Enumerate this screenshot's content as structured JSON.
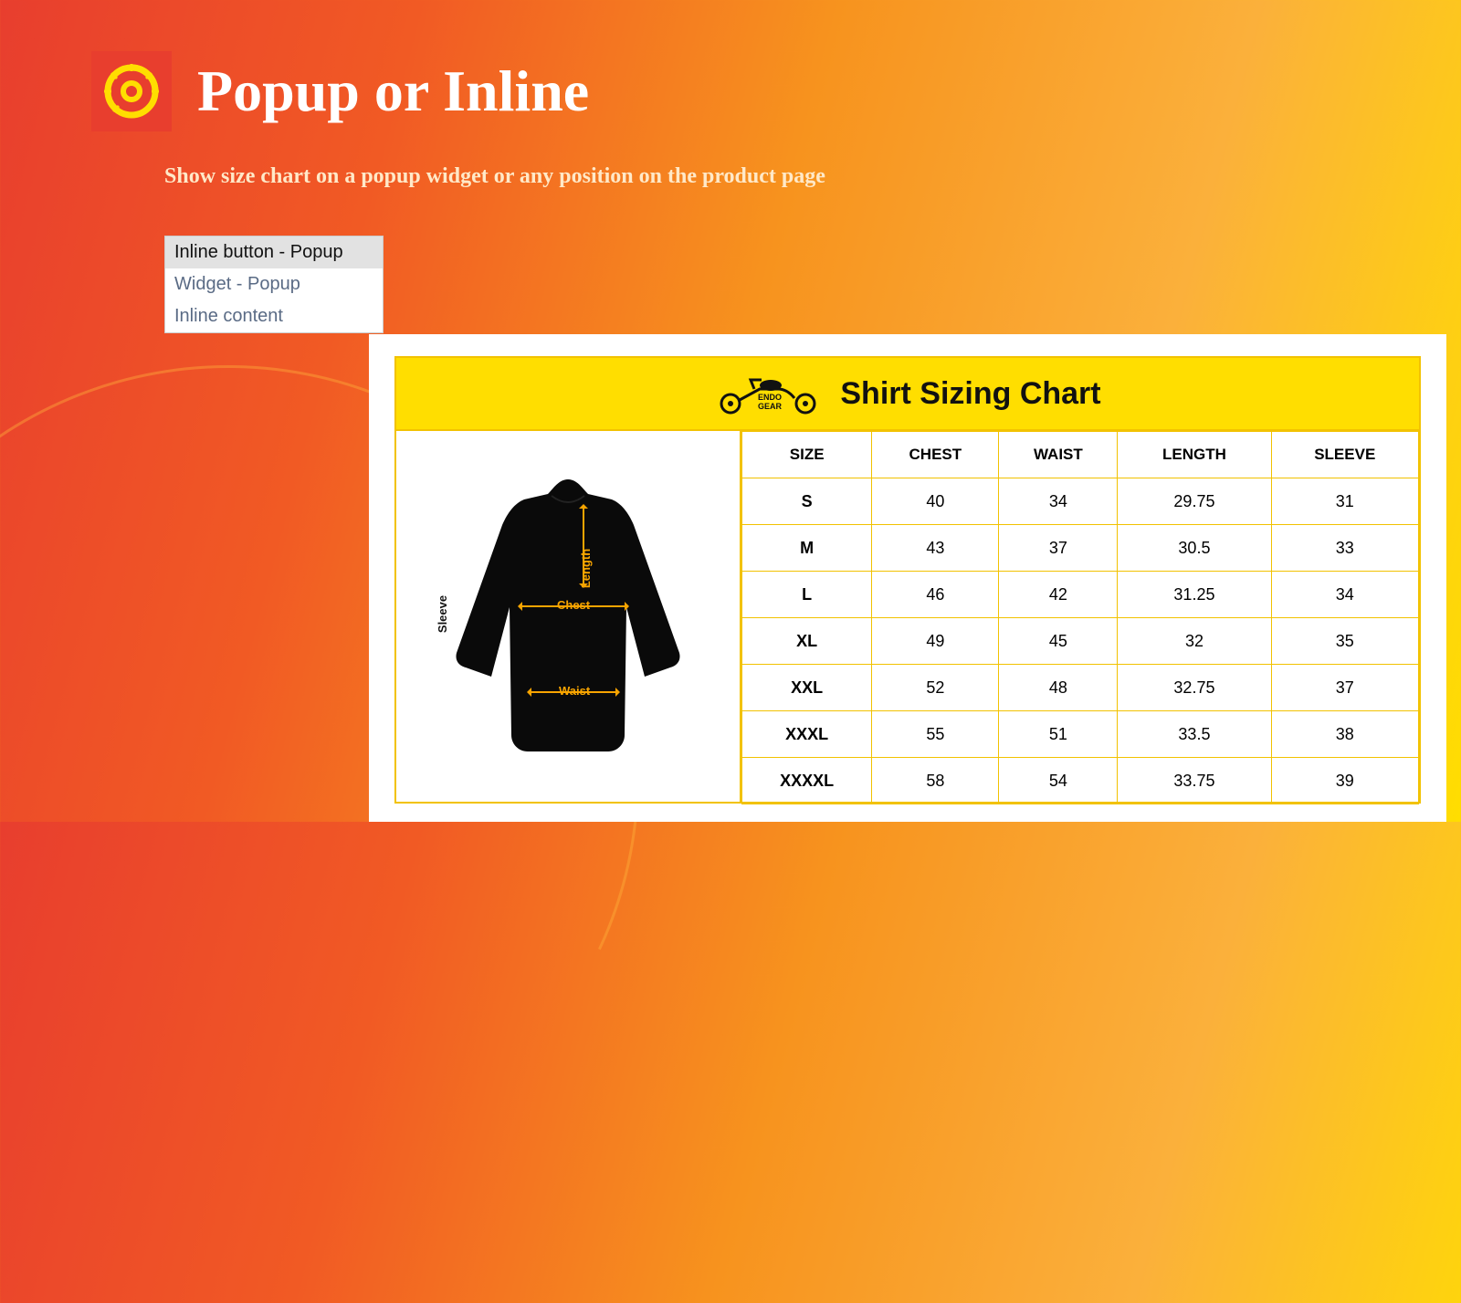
{
  "header": {
    "title": "Popup or Inline",
    "subtitle": "Show size chart on a popup widget or any position on the product page"
  },
  "dropdown": {
    "options": [
      {
        "label": "Inline button - Popup",
        "selected": true
      },
      {
        "label": "Widget - Popup",
        "selected": false
      },
      {
        "label": "Inline content",
        "selected": false
      }
    ]
  },
  "chart": {
    "brand": "ENDO GEAR",
    "title": "Shirt Sizing Chart",
    "diagram_labels": {
      "sleeve": "Sleeve",
      "length": "Length",
      "chest": "Chest",
      "waist": "Waist"
    },
    "columns": [
      "SIZE",
      "CHEST",
      "WAIST",
      "LENGTH",
      "SLEEVE"
    ],
    "rows": [
      [
        "S",
        "40",
        "34",
        "29.75",
        "31"
      ],
      [
        "M",
        "43",
        "37",
        "30.5",
        "33"
      ],
      [
        "L",
        "46",
        "42",
        "31.25",
        "34"
      ],
      [
        "XL",
        "49",
        "45",
        "32",
        "35"
      ],
      [
        "XXL",
        "52",
        "48",
        "32.75",
        "37"
      ],
      [
        "XXXL",
        "55",
        "51",
        "33.5",
        "38"
      ],
      [
        "XXXXL",
        "58",
        "54",
        "33.75",
        "39"
      ]
    ]
  },
  "colors": {
    "gradient_start": "#e83e2e",
    "gradient_end": "#ffde00",
    "chart_yellow": "#ffde00",
    "chart_border": "#f2c200",
    "arrow": "#f7a400"
  }
}
